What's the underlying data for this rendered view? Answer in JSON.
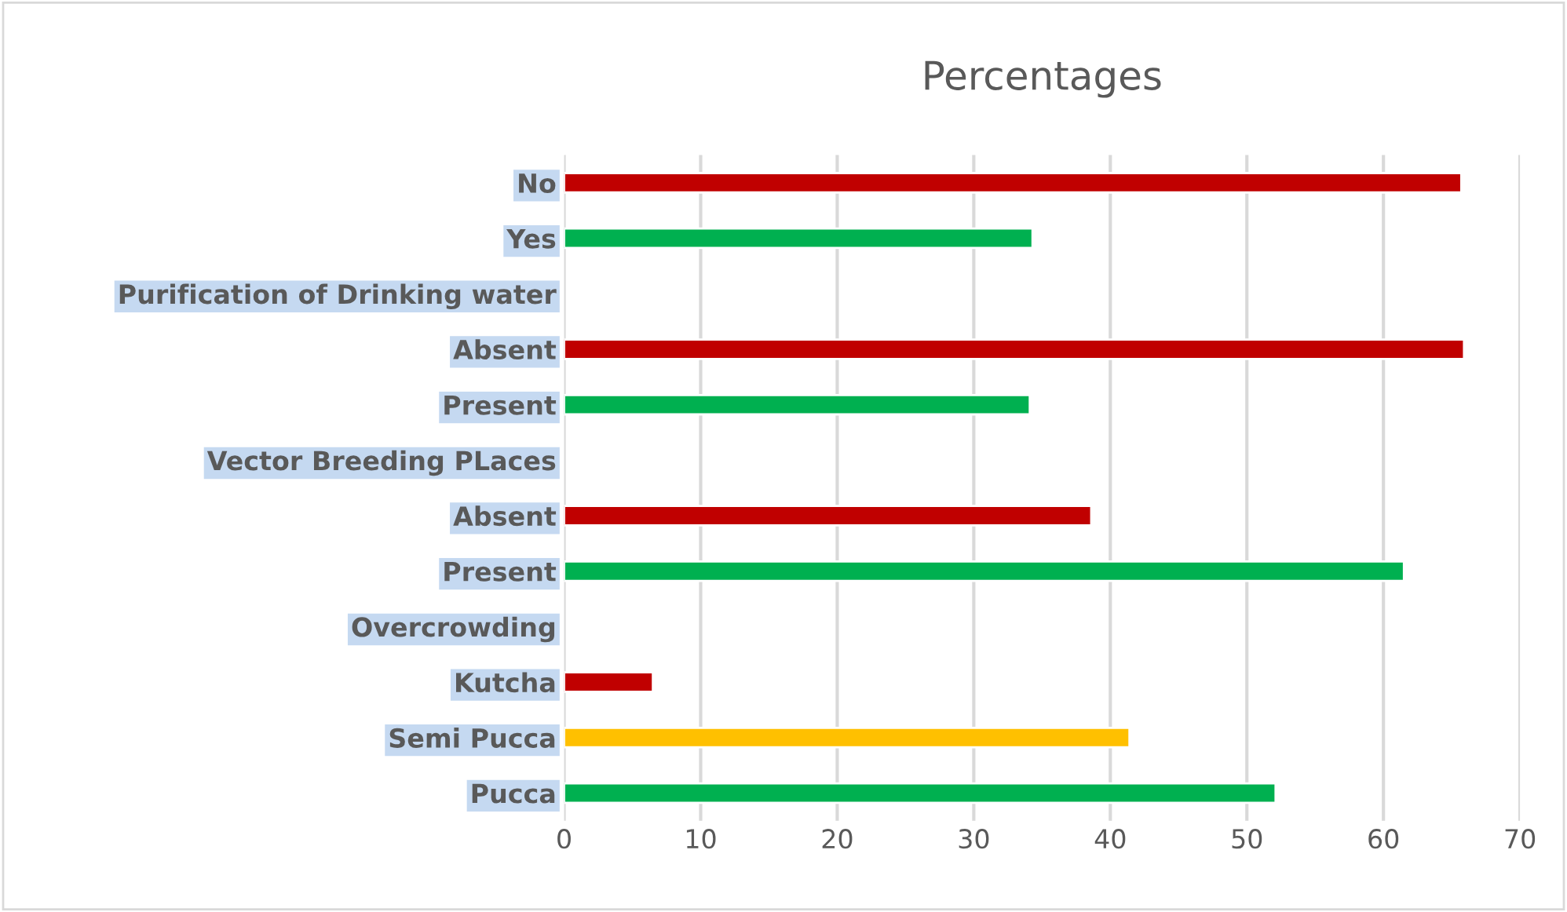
{
  "chart_data": {
    "type": "bar",
    "orientation": "horizontal",
    "title": "Percentages",
    "categories": [
      "No",
      "Yes",
      "Purification of Drinking water",
      "Absent",
      "Present",
      "Vector Breeding PLaces",
      "Absent",
      "Present",
      "Overcrowding",
      "Kutcha",
      "Semi Pucca",
      "Pucca"
    ],
    "values": [
      65.7,
      34.3,
      null,
      65.9,
      34.1,
      null,
      38.6,
      61.5,
      null,
      6.5,
      41.4,
      52.1
    ],
    "colors": [
      "#c00000",
      "#00b050",
      null,
      "#c00000",
      "#00b050",
      null,
      "#c00000",
      "#00b050",
      null,
      "#c00000",
      "#ffc000",
      "#00b050"
    ],
    "xlim": [
      0,
      70
    ],
    "xticks": [
      0,
      10,
      20,
      30,
      40,
      50,
      60,
      70
    ],
    "grid": "x",
    "legend": false
  }
}
